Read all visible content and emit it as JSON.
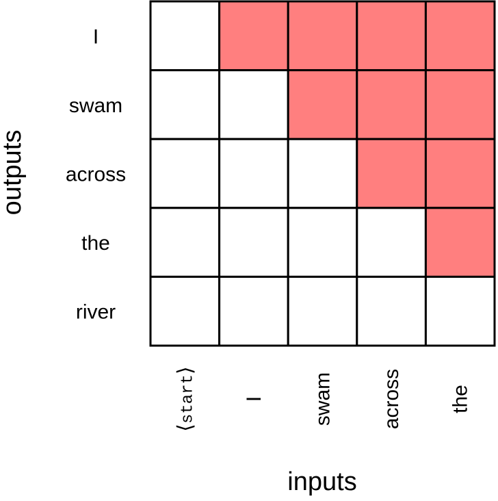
{
  "title": "",
  "x_axis_label": "inputs",
  "y_axis_label": "outputs",
  "row_labels": [
    "I",
    "swam",
    "across",
    "the",
    "river"
  ],
  "column_labels": [
    {
      "open": "⟨",
      "text": "start",
      "close": "⟩"
    },
    {
      "text": "I"
    },
    {
      "text": "swam"
    },
    {
      "text": "across"
    },
    {
      "text": "the"
    }
  ],
  "mask": [
    [
      0,
      1,
      1,
      1,
      1
    ],
    [
      0,
      0,
      1,
      1,
      1
    ],
    [
      0,
      0,
      0,
      1,
      1
    ],
    [
      0,
      0,
      0,
      0,
      1
    ],
    [
      0,
      0,
      0,
      0,
      0
    ]
  ],
  "colors": {
    "masked": "#ff7f7f",
    "unmasked": "#ffffff",
    "grid_line": "#000000",
    "text": "#000000"
  }
}
